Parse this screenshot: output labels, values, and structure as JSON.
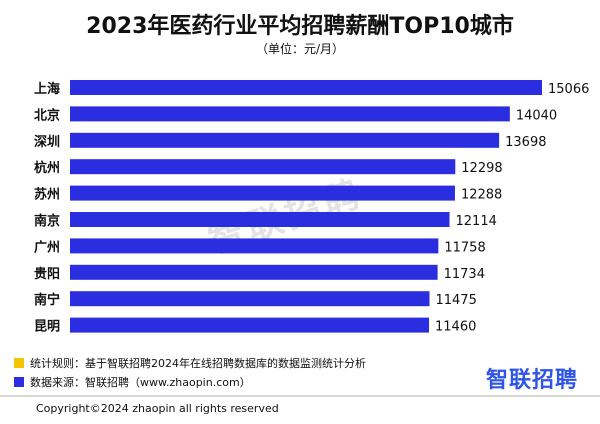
{
  "header": {
    "title": "2023年医药行业平均招聘薪酬TOP10城市",
    "subtitle": "（单位：元/月）"
  },
  "chart_data": {
    "type": "bar",
    "orientation": "horizontal",
    "title": "2023年医药行业平均招聘薪酬TOP10城市",
    "unit": "元/月",
    "categories": [
      "上海",
      "北京",
      "深圳",
      "杭州",
      "苏州",
      "南京",
      "广州",
      "贵阳",
      "南宁",
      "昆明"
    ],
    "values": [
      15066,
      14040,
      13698,
      12298,
      12288,
      12114,
      11758,
      11734,
      11475,
      11460
    ],
    "bar_color": "#2b2ee0",
    "data_labels": true,
    "grid": false
  },
  "watermark": "智联招聘",
  "notes": [
    {
      "color": "#f5c400",
      "text": "统计规则：基于智联招聘2024年在线招聘数据库的数据监测统计分析"
    },
    {
      "color": "#2b2ee0",
      "text": "数据来源：智联招聘（www.zhaopin.com）"
    }
  ],
  "brand": "智联招聘",
  "footer": {
    "copyright": "Copyright©2024 zhaopin all rights reserved"
  }
}
